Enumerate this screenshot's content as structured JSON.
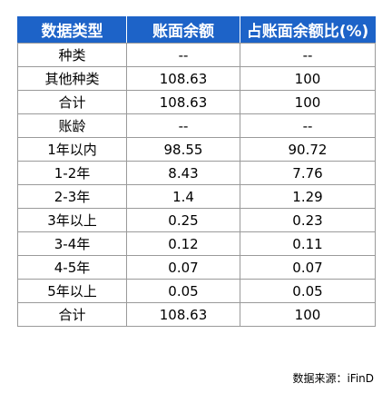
{
  "table": {
    "headers": [
      "数据类型",
      "账面余额",
      "占账面余额比(%)"
    ],
    "rows": [
      [
        "种类",
        "--",
        "--"
      ],
      [
        "其他种类",
        "108.63",
        "100"
      ],
      [
        "合计",
        "108.63",
        "100"
      ],
      [
        "账龄",
        "--",
        "--"
      ],
      [
        "1年以内",
        "98.55",
        "90.72"
      ],
      [
        "1-2年",
        "8.43",
        "7.76"
      ],
      [
        "2-3年",
        "1.4",
        "1.29"
      ],
      [
        "3年以上",
        "0.25",
        "0.23"
      ],
      [
        "3-4年",
        "0.12",
        "0.11"
      ],
      [
        "4-5年",
        "0.07",
        "0.07"
      ],
      [
        "5年以上",
        "0.05",
        "0.05"
      ],
      [
        "合计",
        "108.63",
        "100"
      ]
    ]
  },
  "colors": {
    "header_bg": "#1d63c8",
    "header_text": "#ffffff",
    "grid": "#9a9a9a"
  },
  "footer": {
    "source": "数据来源：iFinD"
  }
}
